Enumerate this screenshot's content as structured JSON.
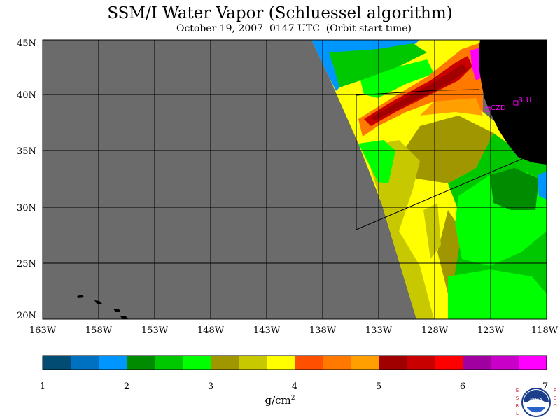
{
  "title": "SSM/I Water Vapor (Schluessel algorithm)",
  "subtitle": "October 19, 2007  0147 UTC  (Orbit start time)",
  "map": {
    "lat_labels": [
      "45N",
      "40N",
      "35N",
      "30N",
      "25N",
      "20N"
    ],
    "lon_labels": [
      "163W",
      "158W",
      "153W",
      "148W",
      "143W",
      "138W",
      "133W",
      "128W",
      "123W",
      "118W"
    ],
    "stations": [
      "CZD",
      "BLU"
    ],
    "colors": {
      "nodata": "#6b6b6b",
      "land": "#000000",
      "station": "#ff00ff"
    }
  },
  "colorbar": {
    "ticks": [
      "1",
      "2",
      "3",
      "4",
      "5",
      "6",
      "7"
    ],
    "units": "g/cm",
    "units_sup": "2",
    "colors": [
      "#004c73",
      "#0070c0",
      "#0096ff",
      "#008c00",
      "#00c800",
      "#00ff00",
      "#a09600",
      "#c8c800",
      "#ffff00",
      "#ff5000",
      "#ff7800",
      "#ffa000",
      "#a00000",
      "#c80000",
      "#ff0000",
      "#a000a0",
      "#c800c8",
      "#ff00ff"
    ]
  },
  "logo": {
    "left_letters": "ESRL",
    "right_letters": "PSD",
    "badge": "NOAA"
  }
}
